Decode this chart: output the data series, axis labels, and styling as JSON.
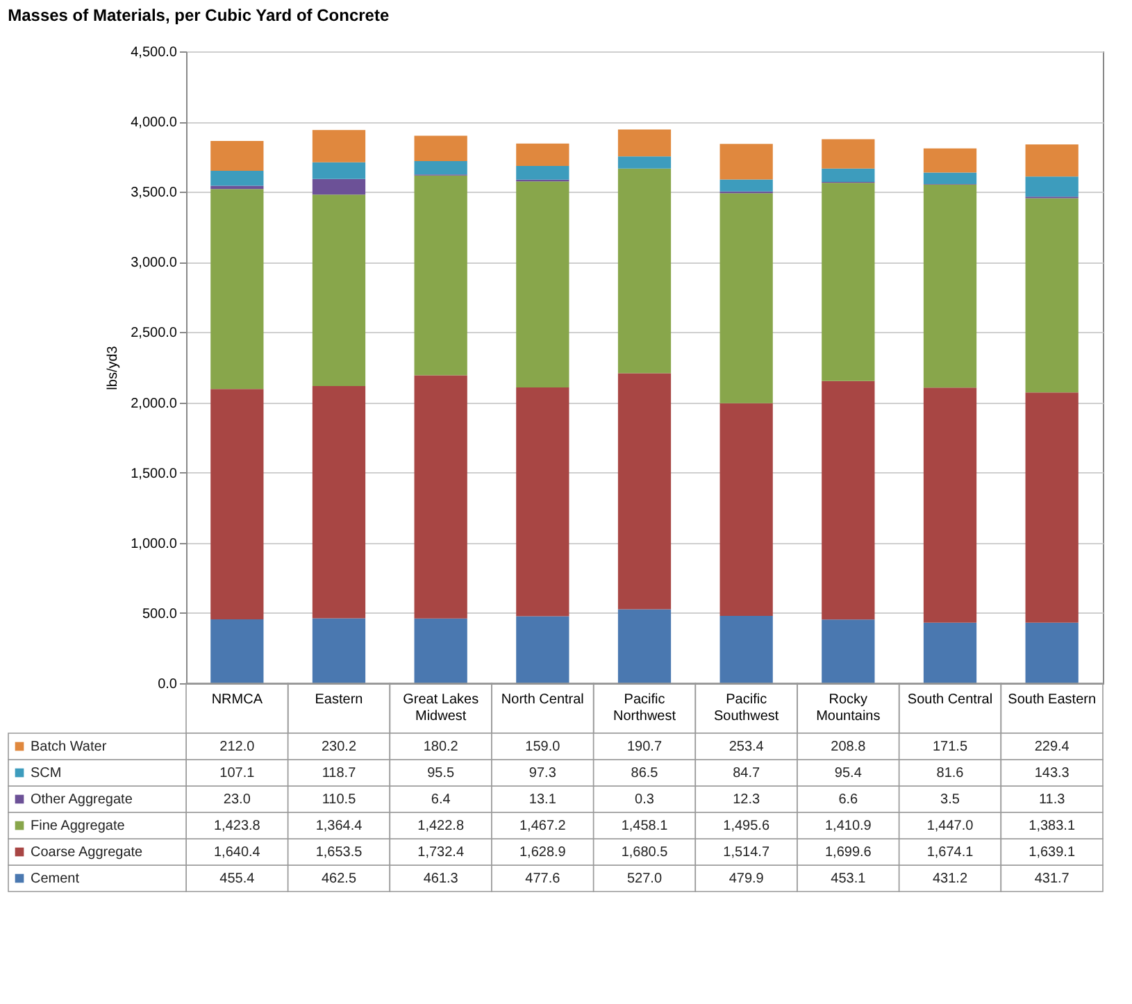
{
  "chart_data": {
    "type": "bar",
    "stacked": true,
    "title": "Masses of Materials, per Cubic Yard of Concrete",
    "ylabel": "lbs/yd3",
    "categories": [
      "NRMCA",
      "Eastern",
      "Great Lakes Midwest",
      "North Central",
      "Pacific Northwest",
      "Pacific Southwest",
      "Rocky Mountains",
      "South Central",
      "South Eastern"
    ],
    "series": [
      {
        "name": "Cement",
        "color": "#4a78b0",
        "values": [
          455.4,
          462.5,
          461.3,
          477.6,
          527.0,
          479.9,
          453.1,
          431.2,
          431.7
        ],
        "value_labels": [
          "455.4",
          "462.5",
          "461.3",
          "477.6",
          "527.0",
          "479.9",
          "453.1",
          "431.2",
          "431.7"
        ]
      },
      {
        "name": "Coarse Aggregate",
        "color": "#a84644",
        "values": [
          1640.4,
          1653.5,
          1732.4,
          1628.9,
          1680.5,
          1514.7,
          1699.6,
          1674.1,
          1639.1
        ],
        "value_labels": [
          "1,640.4",
          "1,653.5",
          "1,732.4",
          "1,628.9",
          "1,680.5",
          "1,514.7",
          "1,699.6",
          "1,674.1",
          "1,639.1"
        ]
      },
      {
        "name": "Fine Aggregate",
        "color": "#88a64b",
        "values": [
          1423.8,
          1364.4,
          1422.8,
          1467.2,
          1458.1,
          1495.6,
          1410.9,
          1447.0,
          1383.1
        ],
        "value_labels": [
          "1,423.8",
          "1,364.4",
          "1,422.8",
          "1,467.2",
          "1,458.1",
          "1,495.6",
          "1,410.9",
          "1,447.0",
          "1,383.1"
        ]
      },
      {
        "name": "Other Aggregate",
        "color": "#6c5197",
        "values": [
          23.0,
          110.5,
          6.4,
          13.1,
          0.3,
          12.3,
          6.6,
          3.5,
          11.3
        ],
        "value_labels": [
          "23.0",
          "110.5",
          "6.4",
          "13.1",
          "0.3",
          "12.3",
          "6.6",
          "3.5",
          "11.3"
        ]
      },
      {
        "name": "SCM",
        "color": "#3d9cbd",
        "values": [
          107.1,
          118.7,
          95.5,
          97.3,
          86.5,
          84.7,
          95.4,
          81.6,
          143.3
        ],
        "value_labels": [
          "107.1",
          "118.7",
          "95.5",
          "97.3",
          "86.5",
          "84.7",
          "95.4",
          "81.6",
          "143.3"
        ]
      },
      {
        "name": "Batch Water",
        "color": "#e0883e",
        "values": [
          212.0,
          230.2,
          180.2,
          159.0,
          190.7,
          253.4,
          208.8,
          171.5,
          229.4
        ],
        "value_labels": [
          "212.0",
          "230.2",
          "180.2",
          "159.0",
          "190.7",
          "253.4",
          "208.8",
          "171.5",
          "229.4"
        ]
      }
    ],
    "ylim": [
      0,
      4500
    ],
    "yticks": [
      {
        "value": 0,
        "label": "0.0"
      },
      {
        "value": 500,
        "label": "500.0"
      },
      {
        "value": 1000,
        "label": "1,000.0"
      },
      {
        "value": 1500,
        "label": "1,500.0"
      },
      {
        "value": 2000,
        "label": "2,000.0"
      },
      {
        "value": 2500,
        "label": "2,500.0"
      },
      {
        "value": 3000,
        "label": "3,000.0"
      },
      {
        "value": 3500,
        "label": "3,500.0"
      },
      {
        "value": 4000,
        "label": "4,000.0"
      },
      {
        "value": 4500,
        "label": "4,500.0"
      }
    ],
    "grid": "y",
    "legend": "bottom left"
  }
}
